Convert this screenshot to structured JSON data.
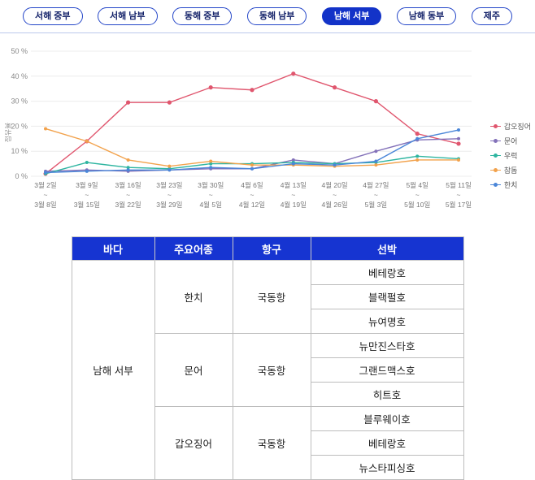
{
  "tabs": [
    {
      "label": "서해 중부",
      "active": false
    },
    {
      "label": "서해 남부",
      "active": false
    },
    {
      "label": "동해 중부",
      "active": false
    },
    {
      "label": "동해 남부",
      "active": false
    },
    {
      "label": "남해 서부",
      "active": true
    },
    {
      "label": "남해 동부",
      "active": false
    },
    {
      "label": "제주",
      "active": false
    }
  ],
  "colors": {
    "accent": "#1333c8",
    "divider": "#bcc8ec",
    "table_header_bg": "#1634d1",
    "grid_line": "#ececec"
  },
  "chart_data": {
    "type": "line",
    "title": "",
    "xlabel": "",
    "ylabel": "점유율",
    "ylim": [
      0,
      50
    ],
    "yticks": [
      0,
      10,
      20,
      30,
      40,
      50
    ],
    "ytick_suffix": " %",
    "range_separator": "~",
    "grid": true,
    "legend_position": "right",
    "categories": [
      [
        "3월 2일",
        "3월 8일"
      ],
      [
        "3월 9일",
        "3월 15일"
      ],
      [
        "3월 16일",
        "3월 22일"
      ],
      [
        "3월 23일",
        "3월 29일"
      ],
      [
        "3월 30일",
        "4월 5일"
      ],
      [
        "4월 6일",
        "4월 12일"
      ],
      [
        "4월 13일",
        "4월 19일"
      ],
      [
        "4월 20일",
        "4월 26일"
      ],
      [
        "4월 27일",
        "5월 3일"
      ],
      [
        "5월 4일",
        "5월 10일"
      ],
      [
        "5월 11일",
        "5월 17일"
      ]
    ],
    "series": [
      {
        "name": "갑오징어",
        "color": "#e0566e",
        "values": [
          1,
          14,
          29.5,
          29.5,
          35.5,
          34.5,
          41,
          35.5,
          30,
          17,
          13
        ]
      },
      {
        "name": "문어",
        "color": "#8371b9",
        "values": [
          2,
          2.5,
          2,
          2.5,
          3,
          3,
          6.5,
          5,
          10,
          14.5,
          15
        ]
      },
      {
        "name": "우럭",
        "color": "#2eb5a0",
        "values": [
          1,
          5.5,
          3.5,
          3,
          5,
          5,
          5.5,
          5,
          5.5,
          8,
          7
        ]
      },
      {
        "name": "참돔",
        "color": "#f2a24c",
        "values": [
          19,
          14,
          6.5,
          4,
          6,
          4.5,
          4.5,
          4,
          4.5,
          6.5,
          6.5
        ]
      },
      {
        "name": "한치",
        "color": "#4a86d8",
        "values": [
          1.5,
          2,
          2.5,
          2.5,
          3.5,
          3,
          5,
          4.5,
          6,
          15,
          18.5
        ]
      }
    ]
  },
  "table": {
    "headers": [
      "바다",
      "주요어종",
      "항구",
      "선박"
    ],
    "sea": "남해 서부",
    "groups": [
      {
        "species": "한치",
        "port": "국동항",
        "ships": [
          "베테랑호",
          "블랙펄호",
          "뉴여명호"
        ]
      },
      {
        "species": "문어",
        "port": "국동항",
        "ships": [
          "뉴만진스타호",
          "그랜드맥스호",
          "히트호"
        ]
      },
      {
        "species": "갑오징어",
        "port": "국동항",
        "ships": [
          "블루웨이호",
          "베테랑호",
          "뉴스타피싱호"
        ]
      }
    ]
  }
}
